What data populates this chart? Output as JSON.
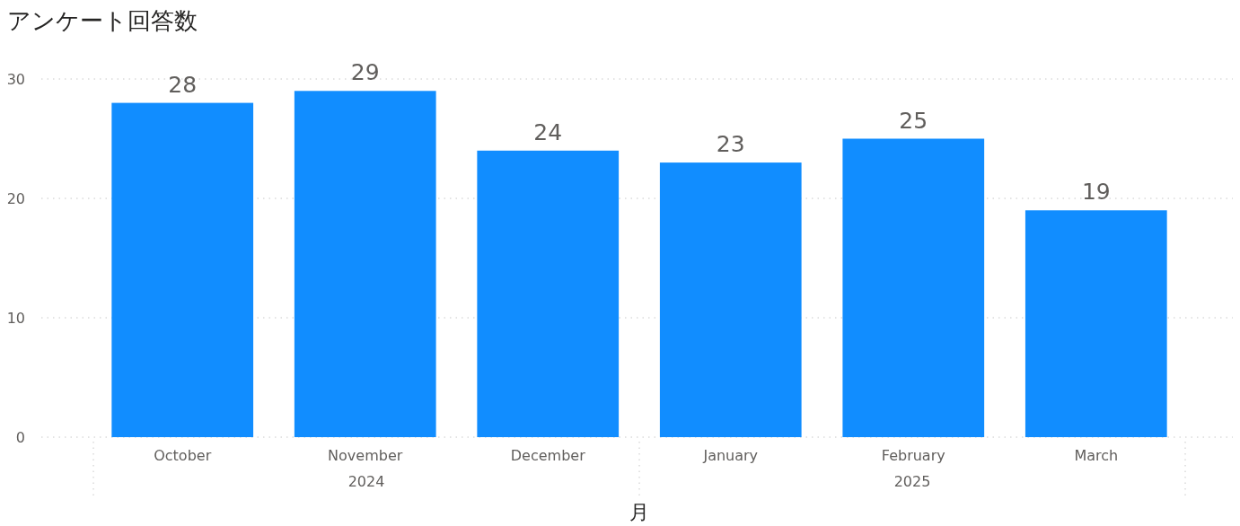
{
  "chart_data": {
    "type": "bar",
    "title": "アンケート回答数",
    "xlabel": "月",
    "categories": [
      "October",
      "November",
      "December",
      "January",
      "February",
      "March"
    ],
    "values": [
      28,
      29,
      24,
      23,
      25,
      19
    ],
    "color": "#118dff",
    "ylim": [
      0,
      30
    ],
    "yticks": [
      0,
      10,
      20,
      30
    ],
    "grid": "y",
    "data_labels": true,
    "annotations": [
      "2024",
      "2025"
    ]
  }
}
